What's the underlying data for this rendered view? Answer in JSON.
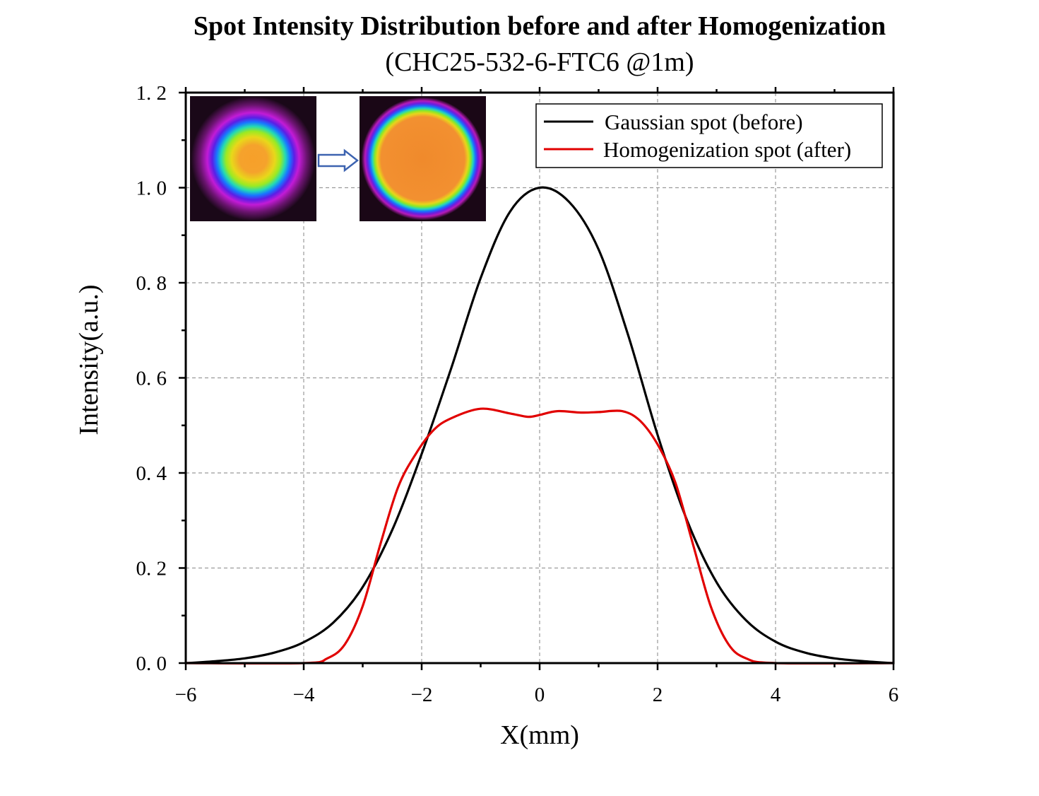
{
  "chart_data": {
    "type": "line",
    "title": "Spot Intensity Distribution before and after Homogenization",
    "subtitle": "(CHC25-532-6-FTC6 @1m)",
    "xlabel": "X(mm)",
    "ylabel": "Intensity(a.u.)",
    "xlim": [
      -6,
      6
    ],
    "ylim": [
      0,
      1.2
    ],
    "x_ticks": [
      -6,
      -4,
      -2,
      0,
      2,
      4,
      6
    ],
    "x_tick_labels": [
      "−6",
      "−4",
      "−2",
      "0",
      "2",
      "4",
      "6"
    ],
    "y_ticks": [
      0,
      0.2,
      0.4,
      0.6,
      0.8,
      1.0,
      1.2
    ],
    "y_tick_labels": [
      "0. 0",
      "0. 2",
      "0. 4",
      "0. 6",
      "0. 8",
      "1. 0",
      "1. 2"
    ],
    "grid": true,
    "legend": "top-right",
    "series": [
      {
        "name": "Gaussian spot (before)",
        "color": "#000000",
        "points": [
          [
            -6.0,
            0.0
          ],
          [
            -5.5,
            0.004
          ],
          [
            -5.0,
            0.01
          ],
          [
            -4.5,
            0.022
          ],
          [
            -4.0,
            0.044
          ],
          [
            -3.5,
            0.085
          ],
          [
            -3.0,
            0.16
          ],
          [
            -2.5,
            0.28
          ],
          [
            -2.0,
            0.44
          ],
          [
            -1.5,
            0.62
          ],
          [
            -1.0,
            0.81
          ],
          [
            -0.5,
            0.95
          ],
          [
            0.0,
            1.0
          ],
          [
            0.5,
            0.97
          ],
          [
            1.0,
            0.87
          ],
          [
            1.5,
            0.69
          ],
          [
            2.0,
            0.48
          ],
          [
            2.5,
            0.3
          ],
          [
            3.0,
            0.17
          ],
          [
            3.5,
            0.09
          ],
          [
            4.0,
            0.045
          ],
          [
            4.5,
            0.022
          ],
          [
            5.0,
            0.01
          ],
          [
            5.5,
            0.004
          ],
          [
            6.0,
            0.0
          ]
        ]
      },
      {
        "name": "Homogenization spot (after)",
        "color": "#e10000",
        "points": [
          [
            -6.0,
            0.0
          ],
          [
            -4.0,
            0.0
          ],
          [
            -3.6,
            0.01
          ],
          [
            -3.3,
            0.04
          ],
          [
            -3.0,
            0.12
          ],
          [
            -2.7,
            0.25
          ],
          [
            -2.4,
            0.37
          ],
          [
            -2.1,
            0.44
          ],
          [
            -1.8,
            0.49
          ],
          [
            -1.5,
            0.515
          ],
          [
            -1.0,
            0.535
          ],
          [
            -0.5,
            0.525
          ],
          [
            -0.2,
            0.518
          ],
          [
            0.0,
            0.522
          ],
          [
            0.3,
            0.53
          ],
          [
            0.7,
            0.527
          ],
          [
            1.0,
            0.528
          ],
          [
            1.4,
            0.53
          ],
          [
            1.7,
            0.51
          ],
          [
            2.0,
            0.46
          ],
          [
            2.3,
            0.38
          ],
          [
            2.6,
            0.25
          ],
          [
            2.9,
            0.12
          ],
          [
            3.2,
            0.04
          ],
          [
            3.5,
            0.01
          ],
          [
            4.0,
            0.0
          ],
          [
            6.0,
            0.0
          ]
        ]
      }
    ]
  }
}
